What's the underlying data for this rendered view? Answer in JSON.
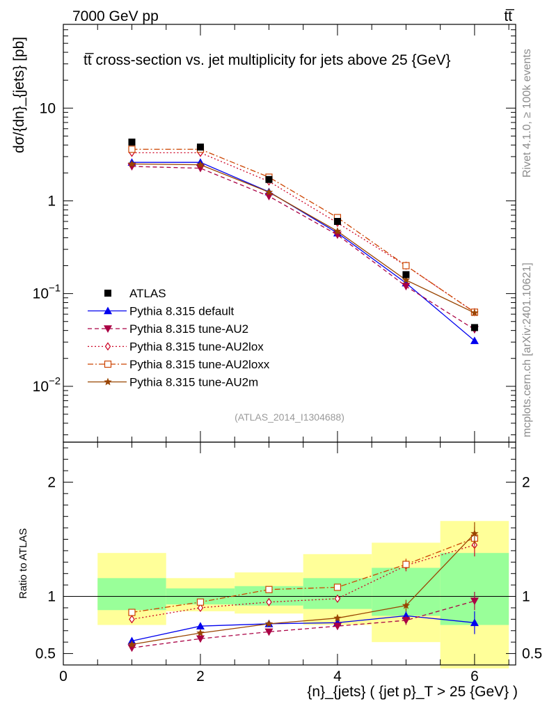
{
  "header": {
    "left": "7000 GeV pp",
    "right": "tt̅"
  },
  "side_labels": {
    "rivet": "Rivet 4.1.0, ≥ 100k events",
    "mcplots": "mcplots.cern.ch [arXiv:2401.10621]"
  },
  "watermark": "(ATLAS_2014_I1304688)",
  "colors": {
    "data": "#000000",
    "default": "#0000ee",
    "au2": "#aa0044",
    "au2lox": "#cc0022",
    "au2loxx": "#cc4400",
    "au2m": "#994400",
    "band_inner": "#99ff99",
    "band_outer": "#ffff99"
  },
  "chart_data": [
    {
      "type": "line",
      "title": "tt̅ cross-section vs. jet multiplicity for jets above 25 {GeV}",
      "ylabel": "dσ/{dn}_{jets} [pb]",
      "yscale": "log",
      "ylim": [
        0.0025,
        80
      ],
      "xlim": [
        0,
        6.6
      ],
      "y_ticklabels": [
        {
          "value": 10,
          "label": "10"
        },
        {
          "value": 1,
          "label": "1"
        },
        {
          "value": 0.1,
          "label": "10",
          "exp": "−1"
        },
        {
          "value": 0.01,
          "label": "10",
          "exp": "−2"
        }
      ],
      "data": {
        "name": "ATLAS",
        "x": [
          1,
          2,
          3,
          4,
          5,
          6
        ],
        "y": [
          4.3,
          3.8,
          1.7,
          0.6,
          0.16,
          0.043
        ]
      },
      "series": [
        {
          "key": "default",
          "name": "Pythia 8.315 default",
          "style": "solid",
          "marker": "triangle-up",
          "x": [
            1,
            2,
            3,
            4,
            5,
            6
          ],
          "y": [
            2.6,
            2.6,
            1.25,
            0.45,
            0.13,
            0.031
          ]
        },
        {
          "key": "au2",
          "name": "Pythia 8.315 tune-AU2",
          "style": "dashed",
          "marker": "triangle-down",
          "x": [
            1,
            2,
            3,
            4,
            5,
            6
          ],
          "y": [
            2.35,
            2.25,
            1.12,
            0.43,
            0.12,
            0.041
          ]
        },
        {
          "key": "au2lox",
          "name": "Pythia 8.315 tune-AU2lox",
          "style": "dotted",
          "marker": "diamond-open",
          "x": [
            1,
            2,
            3,
            4,
            5,
            6
          ],
          "y": [
            3.3,
            3.3,
            1.62,
            0.58,
            0.2,
            0.063
          ]
        },
        {
          "key": "au2loxx",
          "name": "Pythia 8.315 tune-AU2loxx",
          "style": "dashdot",
          "marker": "square-open",
          "x": [
            1,
            2,
            3,
            4,
            5,
            6
          ],
          "y": [
            3.6,
            3.6,
            1.8,
            0.66,
            0.2,
            0.063
          ]
        },
        {
          "key": "au2m",
          "name": "Pythia 8.315 tune-AU2m",
          "style": "solid",
          "marker": "star",
          "x": [
            1,
            2,
            3,
            4,
            5,
            6
          ],
          "y": [
            2.5,
            2.45,
            1.24,
            0.47,
            0.14,
            0.062
          ]
        }
      ]
    },
    {
      "type": "line",
      "title": "",
      "ylabel": "Ratio to ATLAS",
      "xlabel": "{n}_{jets} ( {jet p}_T > 25 {GeV} )",
      "ylim": [
        0.4,
        2.35
      ],
      "xlim": [
        0,
        6.6
      ],
      "x_ticklabels": [
        "0",
        "2",
        "4",
        "6"
      ],
      "x_ticks": [
        0,
        2,
        4,
        6
      ],
      "y_ticklabels": [
        {
          "value": 2,
          "label": "2"
        },
        {
          "value": 1,
          "label": "1"
        },
        {
          "value": 0.5,
          "label": "0.5"
        }
      ],
      "uncertainty_bands": [
        {
          "x_low": 0.5,
          "x_high": 1.5,
          "inner": [
            0.88,
            1.16
          ],
          "outer": [
            0.75,
            1.38
          ]
        },
        {
          "x_low": 1.5,
          "x_high": 2.5,
          "inner": [
            0.93,
            1.07
          ],
          "outer": [
            0.87,
            1.16
          ]
        },
        {
          "x_low": 2.5,
          "x_high": 3.5,
          "inner": [
            0.92,
            1.09
          ],
          "outer": [
            0.85,
            1.21
          ]
        },
        {
          "x_low": 3.5,
          "x_high": 4.5,
          "inner": [
            0.89,
            1.16
          ],
          "outer": [
            0.75,
            1.37
          ]
        },
        {
          "x_low": 4.5,
          "x_high": 5.5,
          "inner": [
            0.83,
            1.25
          ],
          "outer": [
            0.6,
            1.47
          ]
        },
        {
          "x_low": 5.5,
          "x_high": 6.5,
          "inner": [
            0.75,
            1.38
          ],
          "outer": [
            0.37,
            1.66
          ]
        }
      ],
      "series": [
        {
          "key": "default",
          "x": [
            1,
            2,
            3,
            4,
            5,
            6
          ],
          "y": [
            0.61,
            0.74,
            0.76,
            0.77,
            0.83,
            0.77
          ],
          "err": [
            0,
            0,
            0,
            0.03,
            0.04,
            0.1
          ]
        },
        {
          "key": "au2",
          "x": [
            1,
            2,
            3,
            4,
            5,
            6
          ],
          "y": [
            0.55,
            0.63,
            0.69,
            0.74,
            0.79,
            0.96
          ],
          "err": [
            0,
            0,
            0,
            0.03,
            0.04,
            0.08
          ]
        },
        {
          "key": "au2lox",
          "x": [
            1,
            2,
            3,
            4,
            5,
            6
          ],
          "y": [
            0.8,
            0.9,
            0.95,
            0.98,
            1.27,
            1.45
          ],
          "err": [
            0,
            0,
            0,
            0.03,
            0.05,
            0.1
          ]
        },
        {
          "key": "au2loxx",
          "x": [
            1,
            2,
            3,
            4,
            5,
            6
          ],
          "y": [
            0.86,
            0.95,
            1.06,
            1.08,
            1.28,
            1.51
          ],
          "err": [
            0,
            0,
            0,
            0.03,
            0.05,
            0.1
          ]
        },
        {
          "key": "au2m",
          "x": [
            1,
            2,
            3,
            4,
            5,
            6
          ],
          "y": [
            0.58,
            0.68,
            0.76,
            0.81,
            0.92,
            1.55
          ],
          "err": [
            0,
            0,
            0,
            0.03,
            0.05,
            0.1
          ]
        }
      ]
    }
  ]
}
